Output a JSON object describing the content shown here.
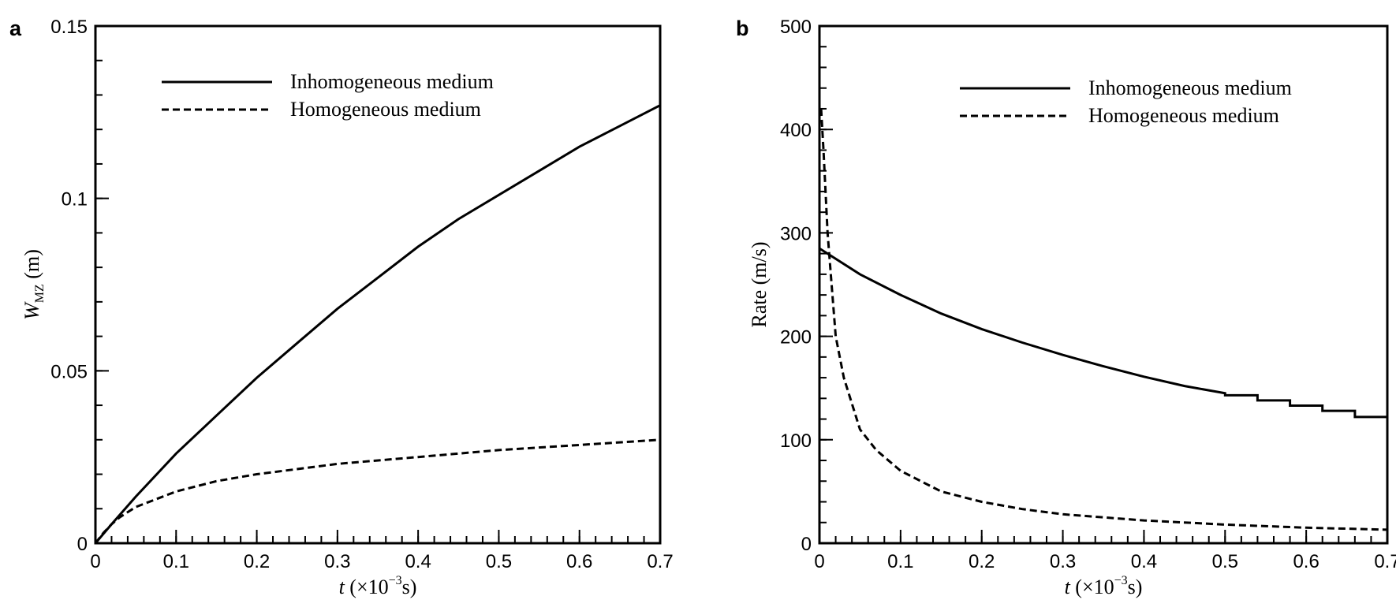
{
  "chart_data": [
    {
      "panel_label": "a",
      "type": "line",
      "xlabel_italic": "t",
      "xlabel_rest": " (×10",
      "xlabel_sup": "−3",
      "xlabel_end": "s)",
      "ylabel_main": "W",
      "ylabel_sub": "MZ",
      "ylabel_unit": " (m)",
      "xlim": [
        0,
        0.7
      ],
      "ylim": [
        0,
        0.15
      ],
      "xticks": [
        0,
        0.1,
        0.2,
        0.3,
        0.4,
        0.5,
        0.6,
        0.7
      ],
      "xtick_labels": [
        "0",
        "0.1",
        "0.2",
        "0.3",
        "0.4",
        "0.5",
        "0.6",
        "0.7"
      ],
      "yticks": [
        0,
        0.05,
        0.1,
        0.15
      ],
      "ytick_labels": [
        "0",
        "0.05",
        "0.1",
        "0.15"
      ],
      "x_minor_step": 0.02,
      "y_minor_step": 0.01,
      "grid": false,
      "legend_placement": "top-center",
      "series": [
        {
          "name": "Inhomogeneous medium",
          "style": "solid",
          "x": [
            0,
            0.02,
            0.05,
            0.1,
            0.15,
            0.2,
            0.25,
            0.3,
            0.35,
            0.4,
            0.45,
            0.5,
            0.55,
            0.6,
            0.65,
            0.7
          ],
          "y": [
            0,
            0.0055,
            0.0135,
            0.026,
            0.037,
            0.048,
            0.058,
            0.068,
            0.077,
            0.086,
            0.094,
            0.101,
            0.108,
            0.115,
            0.121,
            0.127
          ]
        },
        {
          "name": "Homogeneous medium",
          "style": "dashed",
          "x": [
            0,
            0.01,
            0.02,
            0.03,
            0.05,
            0.1,
            0.15,
            0.2,
            0.25,
            0.3,
            0.4,
            0.5,
            0.6,
            0.7
          ],
          "y": [
            0,
            0.003,
            0.0055,
            0.0075,
            0.0105,
            0.015,
            0.018,
            0.02,
            0.0215,
            0.023,
            0.025,
            0.027,
            0.0285,
            0.03
          ]
        }
      ]
    },
    {
      "panel_label": "b",
      "type": "line",
      "xlabel_italic": "t",
      "xlabel_rest": " (×10",
      "xlabel_sup": "−3",
      "xlabel_end": "s)",
      "ylabel": "Rate (m/s)",
      "xlim": [
        0,
        0.7
      ],
      "ylim": [
        0,
        500
      ],
      "xticks": [
        0,
        0.1,
        0.2,
        0.3,
        0.4,
        0.5,
        0.6,
        0.7
      ],
      "xtick_labels": [
        "0",
        "0.1",
        "0.2",
        "0.3",
        "0.4",
        "0.5",
        "0.6",
        "0.7"
      ],
      "yticks": [
        0,
        100,
        200,
        300,
        400,
        500
      ],
      "ytick_labels": [
        "0",
        "100",
        "200",
        "300",
        "400",
        "500"
      ],
      "x_minor_step": 0.02,
      "y_minor_step": 20,
      "grid": false,
      "legend_placement": "top-right",
      "series": [
        {
          "name": "Inhomogeneous medium",
          "style": "solid",
          "x": [
            0,
            0.05,
            0.1,
            0.15,
            0.2,
            0.25,
            0.3,
            0.35,
            0.4,
            0.45,
            0.5,
            0.5,
            0.54,
            0.54,
            0.58,
            0.58,
            0.62,
            0.62,
            0.66,
            0.66,
            0.7
          ],
          "y": [
            285,
            260,
            240,
            222,
            207,
            194,
            182,
            171,
            161,
            152,
            145,
            143,
            143,
            138,
            138,
            133,
            133,
            128,
            128,
            122,
            122
          ]
        },
        {
          "name": "Homogeneous medium",
          "style": "dashed",
          "x": [
            0.002,
            0.005,
            0.01,
            0.015,
            0.02,
            0.03,
            0.05,
            0.07,
            0.1,
            0.15,
            0.2,
            0.25,
            0.3,
            0.4,
            0.5,
            0.6,
            0.7
          ],
          "y": [
            420,
            380,
            300,
            250,
            200,
            160,
            110,
            90,
            70,
            50,
            40,
            33,
            28,
            22,
            18,
            15,
            13
          ]
        }
      ]
    }
  ]
}
